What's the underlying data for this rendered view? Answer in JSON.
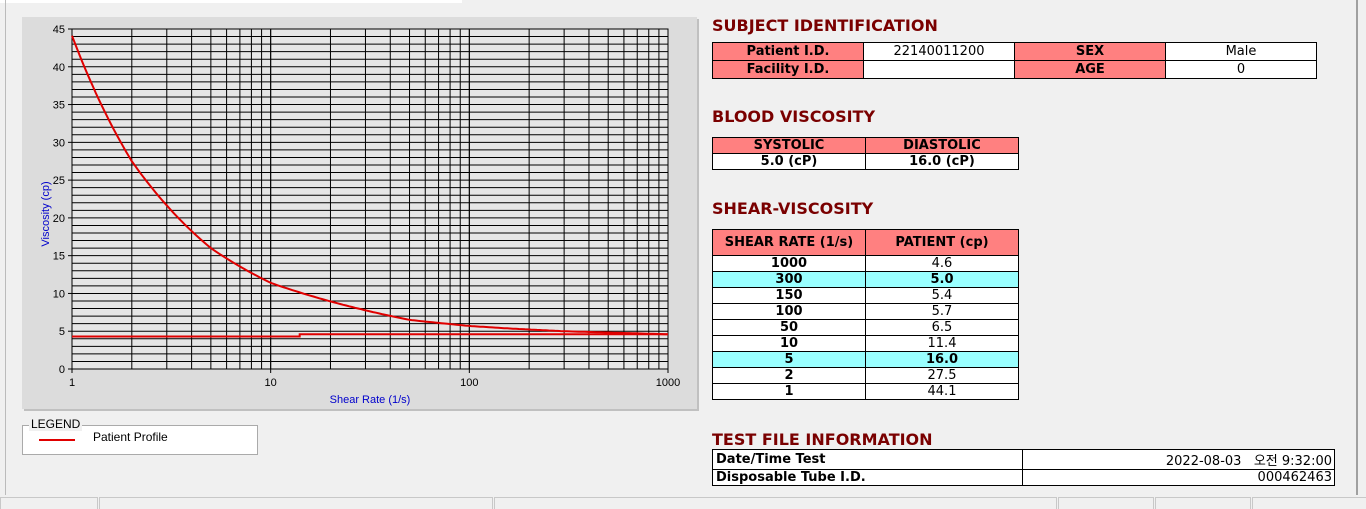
{
  "chart_data": {
    "type": "line",
    "xlabel": "Shear Rate (1/s)",
    "ylabel": "Viscosity (cp)",
    "xscale": "log",
    "xlim": [
      1,
      1000
    ],
    "ylim": [
      0,
      45
    ],
    "xticks": [
      "1",
      "10",
      "100",
      "1000"
    ],
    "yticks": [
      "0",
      "5",
      "10",
      "15",
      "20",
      "25",
      "30",
      "35",
      "40",
      "45"
    ],
    "grid": true,
    "legend_position": "below-left",
    "series": [
      {
        "name": "Patient Profile",
        "color": "#e00000",
        "x": [
          1,
          2,
          5,
          10,
          50,
          100,
          150,
          300,
          1000
        ],
        "y": [
          44.1,
          27.5,
          16.0,
          11.4,
          6.5,
          5.7,
          5.4,
          5.0,
          4.6
        ]
      },
      {
        "color": "#e00000",
        "x": [
          1,
          14,
          14,
          1000
        ],
        "y": [
          4.3,
          4.3,
          4.6,
          4.6
        ]
      }
    ]
  },
  "legend": {
    "title": "LEGEND",
    "label": "Patient Profile"
  },
  "subject": {
    "title": "SUBJECT IDENTIFICATION",
    "patient_id_label": "Patient I.D.",
    "patient_id": "22140011200",
    "sex_label": "SEX",
    "sex": "Male",
    "facility_label": "Facility I.D.",
    "facility": "",
    "age_label": "AGE",
    "age": "0"
  },
  "blood": {
    "title": "BLOOD VISCOSITY",
    "systolic_label": "SYSTOLIC",
    "diastolic_label": "DIASTOLIC",
    "systolic": "5.0 (cP)",
    "diastolic": "16.0 (cP)"
  },
  "shear": {
    "title": "SHEAR-VISCOSITY",
    "col1": "SHEAR RATE (1/s)",
    "col2": "PATIENT (cp)",
    "rows": [
      [
        "1000",
        "4.6",
        false
      ],
      [
        "300",
        "5.0",
        true
      ],
      [
        "150",
        "5.4",
        false
      ],
      [
        "100",
        "5.7",
        false
      ],
      [
        "50",
        "6.5",
        false
      ],
      [
        "10",
        "11.4",
        false
      ],
      [
        "5",
        "16.0",
        true
      ],
      [
        "2",
        "27.5",
        false
      ],
      [
        "1",
        "44.1",
        false
      ]
    ]
  },
  "testfile": {
    "title": "TEST FILE INFORMATION",
    "date_label": "Date/Time Test",
    "date": "2022-08-03   오전 9:32:00",
    "tube_label": "Disposable Tube I.D.",
    "tube": "000462463"
  },
  "colors": {
    "header": "#ff8080",
    "highlight": "#99ffff",
    "title": "#7a0000",
    "curve": "#e00000"
  }
}
